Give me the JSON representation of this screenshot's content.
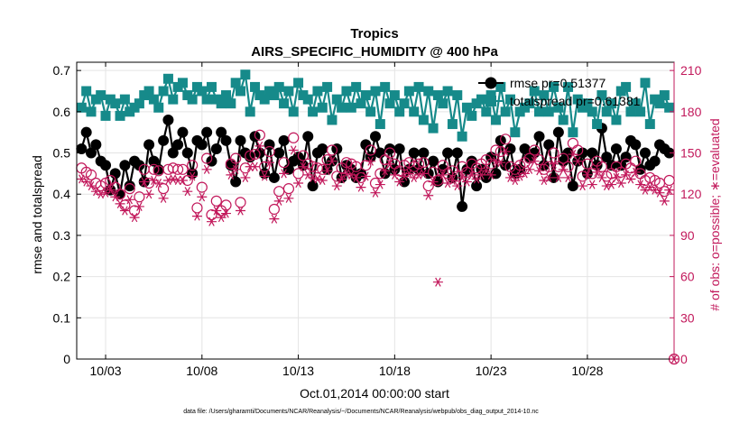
{
  "chart_data": {
    "type": "line",
    "title": "Tropics",
    "subtitle": "AIRS_SPECIFIC_HUMIDITY @ 400 hPa",
    "xlabel": "Oct.01,2014 00:00:00 start",
    "ylabel": "rmse and totalspread",
    "y2label": "# of obs: o=possible; ∗=evaluated",
    "xlim": [
      1.5,
      32.5
    ],
    "ylim": [
      0,
      0.72
    ],
    "y2lim": [
      0,
      216
    ],
    "x_tick_values": [
      3,
      8,
      13,
      18,
      23,
      28
    ],
    "x_tick_labels": [
      "10/03",
      "10/08",
      "10/13",
      "10/18",
      "10/23",
      "10/28"
    ],
    "y_tick_values": [
      0,
      0.1,
      0.2,
      0.3,
      0.4,
      0.5,
      0.6,
      0.7
    ],
    "y_tick_labels": [
      "0",
      "0.1",
      "0.2",
      "0.3",
      "0.4",
      "0.5",
      "0.6",
      "0.7"
    ],
    "y2_tick_values": [
      0,
      30,
      60,
      90,
      120,
      150,
      180,
      210
    ],
    "y2_tick_labels": [
      "0",
      "30",
      "60",
      "90",
      "120",
      "150",
      "180",
      "210"
    ],
    "grid": true,
    "legend": [
      "rmse pr=0.51377",
      "totalspread pr=0.61381"
    ],
    "legend_position": "top-right",
    "footer": "data file: /Users/gharamti/Documents/NCAR/Reanalysis/~/Documents/NCAR/Reanalysis/webpub/obs_diag_output_2014-10.nc",
    "x": [
      1.75,
      2.0,
      2.25,
      2.5,
      2.75,
      3.0,
      3.25,
      3.5,
      3.75,
      4.0,
      4.25,
      4.5,
      4.75,
      5.0,
      5.25,
      5.5,
      5.75,
      6.0,
      6.25,
      6.5,
      6.75,
      7.0,
      7.25,
      7.5,
      7.75,
      8.0,
      8.25,
      8.5,
      8.75,
      9.0,
      9.25,
      9.5,
      9.75,
      10.0,
      10.25,
      10.5,
      10.75,
      11.0,
      11.25,
      11.5,
      11.75,
      12.0,
      12.25,
      12.5,
      12.75,
      13.0,
      13.25,
      13.5,
      13.75,
      14.0,
      14.25,
      14.5,
      14.75,
      15.0,
      15.25,
      15.5,
      15.75,
      16.0,
      16.25,
      16.5,
      16.75,
      17.0,
      17.25,
      17.5,
      17.75,
      18.0,
      18.25,
      18.5,
      18.75,
      19.0,
      19.25,
      19.5,
      19.75,
      20.0,
      20.25,
      20.5,
      20.75,
      21.0,
      21.25,
      21.5,
      21.75,
      22.0,
      22.25,
      22.5,
      22.75,
      23.0,
      23.25,
      23.5,
      23.75,
      24.0,
      24.25,
      24.5,
      24.75,
      25.0,
      25.25,
      25.5,
      25.75,
      26.0,
      26.25,
      26.5,
      26.75,
      27.0,
      27.25,
      27.5,
      27.75,
      28.0,
      28.25,
      28.5,
      28.75,
      29.0,
      29.25,
      29.5,
      29.75,
      30.0,
      30.25,
      30.5,
      30.75,
      31.0,
      31.25,
      31.5,
      31.75,
      32.0,
      32.25
    ],
    "series": [
      {
        "name": "rmse",
        "axis": "left",
        "color": "#000000",
        "marker": "circle-filled",
        "values": [
          0.51,
          0.55,
          0.5,
          0.52,
          0.48,
          0.47,
          0.41,
          0.45,
          0.4,
          0.47,
          0.42,
          0.48,
          0.47,
          0.43,
          0.52,
          0.48,
          0.46,
          0.53,
          0.58,
          0.5,
          0.52,
          0.55,
          0.5,
          0.45,
          0.53,
          0.52,
          0.55,
          0.48,
          0.51,
          0.55,
          0.53,
          0.47,
          0.43,
          0.53,
          0.5,
          0.49,
          0.54,
          0.5,
          0.45,
          0.52,
          0.44,
          0.5,
          0.53,
          0.46,
          0.48,
          0.49,
          0.47,
          0.54,
          0.42,
          0.5,
          0.51,
          0.46,
          0.48,
          0.51,
          0.44,
          0.47,
          0.46,
          0.44,
          0.45,
          0.52,
          0.49,
          0.54,
          0.5,
          0.45,
          0.51,
          0.46,
          0.51,
          0.43,
          0.46,
          0.5,
          0.46,
          0.5,
          0.45,
          0.48,
          0.43,
          0.46,
          0.5,
          0.44,
          0.5,
          0.37,
          0.46,
          0.48,
          0.42,
          0.46,
          0.44,
          0.49,
          0.45,
          0.53,
          0.47,
          0.51,
          0.45,
          0.46,
          0.51,
          0.49,
          0.5,
          0.54,
          0.47,
          0.52,
          0.44,
          0.55,
          0.48,
          0.5,
          0.42,
          0.48,
          0.5,
          0.45,
          0.5,
          0.47,
          0.56,
          0.49,
          0.47,
          0.51,
          0.47,
          0.49,
          0.53,
          0.52,
          0.46,
          0.5,
          0.47,
          0.48,
          0.52,
          0.51,
          0.5
        ]
      },
      {
        "name": "totalspread",
        "axis": "left",
        "color": "#168a8a",
        "marker": "square-filled",
        "values": [
          0.61,
          0.65,
          0.6,
          0.63,
          0.64,
          0.59,
          0.63,
          0.62,
          0.59,
          0.63,
          0.6,
          0.61,
          0.62,
          0.64,
          0.65,
          0.63,
          0.61,
          0.65,
          0.68,
          0.63,
          0.66,
          0.67,
          0.64,
          0.63,
          0.66,
          0.65,
          0.63,
          0.66,
          0.63,
          0.62,
          0.64,
          0.62,
          0.67,
          0.65,
          0.69,
          0.6,
          0.66,
          0.64,
          0.63,
          0.65,
          0.64,
          0.66,
          0.62,
          0.65,
          0.6,
          0.67,
          0.64,
          0.63,
          0.6,
          0.65,
          0.61,
          0.66,
          0.58,
          0.63,
          0.61,
          0.65,
          0.61,
          0.66,
          0.62,
          0.64,
          0.6,
          0.65,
          0.57,
          0.66,
          0.62,
          0.64,
          0.6,
          0.62,
          0.65,
          0.6,
          0.66,
          0.58,
          0.65,
          0.56,
          0.64,
          0.62,
          0.65,
          0.57,
          0.64,
          0.54,
          0.61,
          0.59,
          0.62,
          0.63,
          0.6,
          0.64,
          0.58,
          0.66,
          0.6,
          0.63,
          0.55,
          0.6,
          0.61,
          0.62,
          0.65,
          0.6,
          0.64,
          0.6,
          0.66,
          0.61,
          0.58,
          0.66,
          0.55,
          0.63,
          0.61,
          0.62,
          0.6,
          0.57,
          0.64,
          0.6,
          0.62,
          0.58,
          0.65,
          0.66,
          0.6,
          0.62,
          0.6,
          0.67,
          0.57,
          0.63,
          0.62,
          0.64,
          0.61
        ]
      },
      {
        "name": "obs possible",
        "axis": "right",
        "color": "#c2185b",
        "marker": "circle-open",
        "values": [
          139,
          136,
          134,
          128,
          126,
          128,
          130,
          125,
          120,
          112,
          124,
          108,
          118,
          138,
          128,
          138,
          137,
          124,
          138,
          139,
          138,
          138,
          130,
          141,
          110,
          125,
          146,
          105,
          115,
          108,
          112,
          142,
          146,
          114,
          139,
          148,
          149,
          163,
          140,
          151,
          109,
          122,
          143,
          124,
          161,
          135,
          148,
          142,
          140,
          139,
          138,
          145,
          152,
          133,
          139,
          143,
          142,
          140,
          132,
          141,
          152,
          128,
          135,
          145,
          150,
          142,
          137,
          141,
          143,
          140,
          142,
          143,
          126,
          136,
          130,
          141,
          135,
          137,
          133,
          140,
          136,
          142,
          139,
          142,
          145,
          142,
          152,
          151,
          160,
          140,
          138,
          141,
          143,
          146,
          152,
          145,
          138,
          140,
          150,
          140,
          146,
          140,
          157,
          152,
          133,
          142,
          135,
          144,
          140,
          133,
          135,
          140,
          136,
          142,
          139,
          144,
          135,
          130,
          132,
          130,
          128,
          122,
          130
        ]
      },
      {
        "name": "obs evaluated",
        "axis": "right",
        "color": "#c2185b",
        "marker": "asterisk",
        "values": [
          131,
          129,
          126,
          122,
          120,
          121,
          123,
          118,
          113,
          108,
          116,
          103,
          111,
          129,
          120,
          130,
          128,
          117,
          130,
          131,
          130,
          130,
          122,
          133,
          104,
          118,
          138,
          100,
          108,
          103,
          106,
          134,
          138,
          108,
          132,
          140,
          140,
          155,
          133,
          143,
          102,
          115,
          135,
          117,
          152,
          128,
          140,
          134,
          132,
          131,
          130,
          137,
          144,
          126,
          131,
          135,
          134,
          132,
          125,
          133,
          144,
          121,
          127,
          137,
          142,
          134,
          129,
          133,
          135,
          132,
          134,
          135,
          119,
          129,
          56,
          134,
          128,
          130,
          126,
          132,
          129,
          134,
          131,
          134,
          137,
          134,
          144,
          143,
          151,
          132,
          130,
          133,
          135,
          138,
          144,
          137,
          130,
          132,
          142,
          132,
          138,
          132,
          149,
          144,
          126,
          134,
          127,
          136,
          132,
          126,
          127,
          132,
          128,
          134,
          131,
          136,
          127,
          123,
          125,
          123,
          121,
          115,
          123
        ]
      }
    ]
  }
}
